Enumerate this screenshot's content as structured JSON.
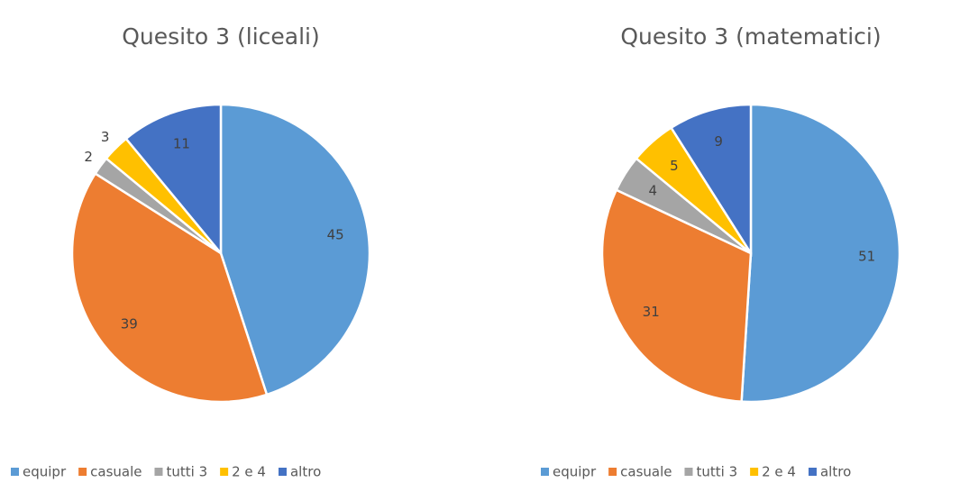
{
  "chart_data": [
    {
      "type": "pie",
      "title": "Quesito 3 (liceali)",
      "categories": [
        "equipr",
        "casuale",
        "tutti 3",
        "2 e 4",
        "altro"
      ],
      "values": [
        45,
        39,
        2,
        3,
        11
      ],
      "colors": [
        "#5b9bd5",
        "#ed7d31",
        "#a5a5a5",
        "#ffc000",
        "#4472c4"
      ]
    },
    {
      "type": "pie",
      "title": "Quesito 3 (matematici)",
      "categories": [
        "equipr",
        "casuale",
        "tutti 3",
        "2 e 4",
        "altro"
      ],
      "values": [
        51,
        31,
        4,
        5,
        9
      ],
      "colors": [
        "#5b9bd5",
        "#ed7d31",
        "#a5a5a5",
        "#ffc000",
        "#4472c4"
      ]
    }
  ]
}
